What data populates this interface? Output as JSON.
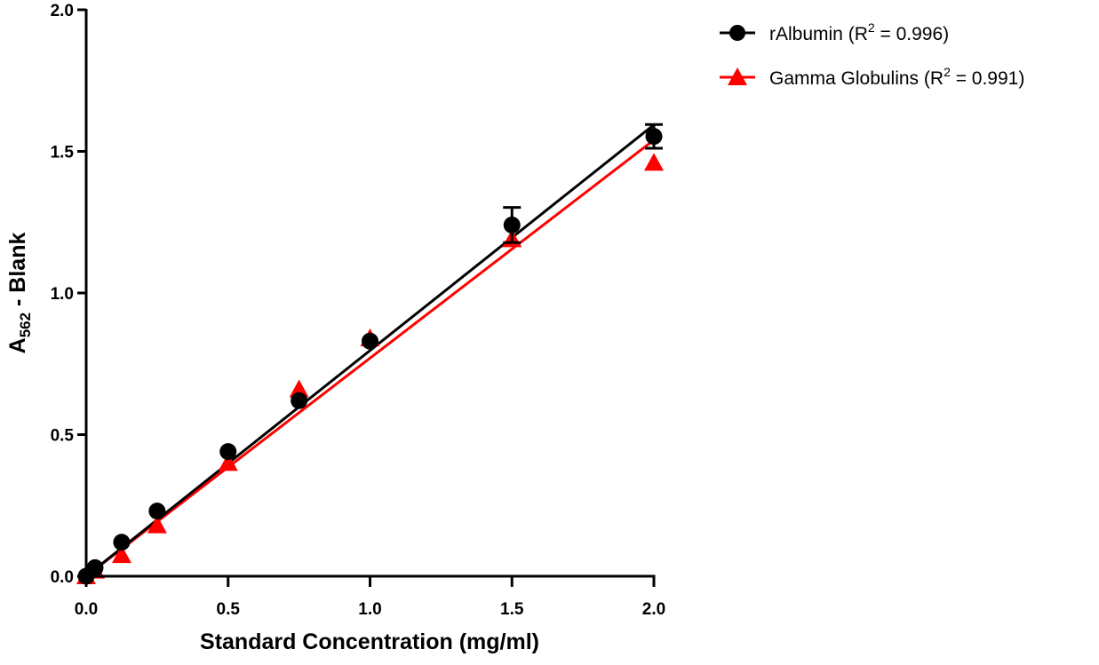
{
  "chart_data": {
    "type": "scatter",
    "xlabel": "Standard Concentration (mg/ml)",
    "ylabel": {
      "main": "A",
      "subscript": "562",
      "suffix": " - Blank"
    },
    "xlim": [
      0,
      2.0
    ],
    "ylim": [
      0,
      2.0
    ],
    "xticks": [
      "0.0",
      "0.5",
      "1.0",
      "1.5",
      "2.0"
    ],
    "yticks": [
      "0.0",
      "0.5",
      "1.0",
      "1.5",
      "2.0"
    ],
    "grid": false,
    "legend_position": "top-right",
    "series": [
      {
        "name": "rAlbumin",
        "legend": {
          "prefix": "rAlbumin (R",
          "sup": "2",
          "suffix": " = 0.996)"
        },
        "color": "#000000",
        "marker": "circle",
        "x": [
          0,
          0.03125,
          0.125,
          0.25,
          0.5,
          0.75,
          1.0,
          1.5,
          2.0
        ],
        "y": [
          0.0,
          0.03,
          0.12,
          0.23,
          0.44,
          0.62,
          0.83,
          1.24,
          1.553
        ],
        "error": [
          0,
          0,
          0,
          0,
          0,
          0,
          0,
          0.062,
          0.042
        ],
        "fit": {
          "slope": 0.797,
          "intercept": 0.0
        }
      },
      {
        "name": "Gamma Globulins",
        "legend": {
          "prefix": "Gamma Globulins (R",
          "sup": "2",
          "suffix": " = 0.991)"
        },
        "color": "#ff0000",
        "marker": "triangle",
        "x": [
          0,
          0.03125,
          0.125,
          0.25,
          0.5,
          0.75,
          1.0,
          1.5,
          2.0
        ],
        "y": [
          0.0,
          0.02,
          0.075,
          0.18,
          0.4,
          0.66,
          0.84,
          1.19,
          1.46
        ],
        "error": [
          0,
          0,
          0,
          0,
          0,
          0,
          0,
          0,
          0
        ],
        "fit": {
          "slope": 0.77,
          "intercept": 0.0
        }
      }
    ]
  }
}
